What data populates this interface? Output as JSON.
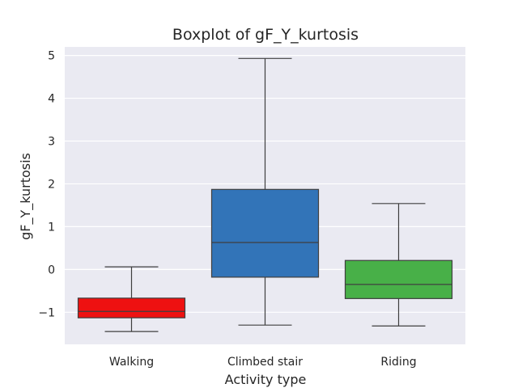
{
  "chart_data": {
    "type": "box",
    "title": "Boxplot of gF_Y_kurtosis",
    "xlabel": "Activity type",
    "ylabel": "gF_Y_kurtosis",
    "ylim": [
      -1.75,
      5.2
    ],
    "yticks": [
      -1,
      0,
      1,
      2,
      3,
      4,
      5
    ],
    "ytick_labels": [
      "−1",
      "0",
      "1",
      "2",
      "3",
      "4",
      "5"
    ],
    "grid": true,
    "categories": [
      "Walking",
      "Climbed stair",
      "Riding"
    ],
    "boxes": [
      {
        "category": "Walking",
        "whisker_low": -1.45,
        "q1": -1.13,
        "median": -0.98,
        "q3": -0.67,
        "whisker_high": 0.06,
        "color": "#ee1111"
      },
      {
        "category": "Climbed stair",
        "whisker_low": -1.3,
        "q1": -0.18,
        "median": 0.63,
        "q3": 1.87,
        "whisker_high": 4.93,
        "color": "#3274b8"
      },
      {
        "category": "Riding",
        "whisker_low": -1.32,
        "q1": -0.68,
        "median": -0.35,
        "q3": 0.21,
        "whisker_high": 1.54,
        "color": "#48b048"
      }
    ]
  }
}
